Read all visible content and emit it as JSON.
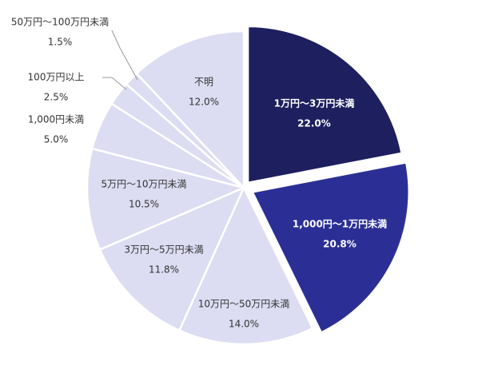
{
  "chart_data": {
    "type": "pie",
    "categories": [
      "1万円～3万円未満",
      "1,000円～1万円未満",
      "10万円～50万円未満",
      "3万円～5万円未満",
      "5万円～10万円未満",
      "1,000円未満",
      "100万円以上",
      "50万円～100万円未満",
      "不明"
    ],
    "values": [
      22.0,
      20.8,
      14.0,
      11.8,
      10.5,
      5.0,
      2.5,
      1.5,
      12.0
    ],
    "value_labels": [
      "22.0%",
      "20.8%",
      "14.0%",
      "11.8%",
      "10.5%",
      "5.0%",
      "2.5%",
      "1.5%",
      "12.0%"
    ],
    "colors": [
      "#1d1f5e",
      "#2b2f95",
      "#dcdcf2",
      "#dcdcf2",
      "#dcdcf2",
      "#dcdcf2",
      "#dcdcf2",
      "#dcdcf2",
      "#dcdcf2"
    ]
  }
}
